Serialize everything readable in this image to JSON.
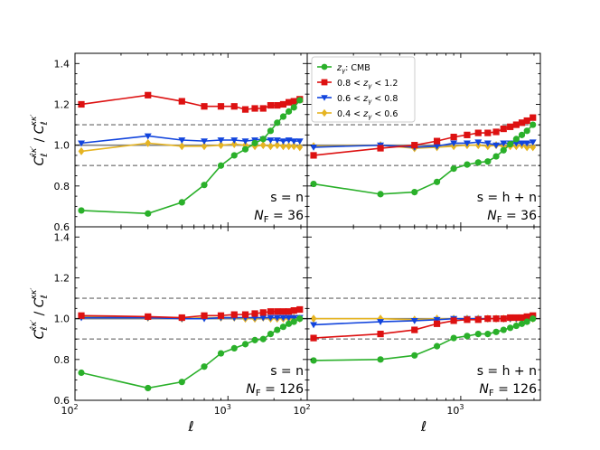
{
  "chart_data": {
    "type": "line",
    "layout": "2x2 grid, shared axes",
    "xlabel": "ℓ",
    "ylabel": "C_ℓ^{κ̂κ'} / C_ℓ^{κκ'}",
    "xscale": "log",
    "xlim": [
      100,
      3300
    ],
    "ylim": [
      0.6,
      1.45
    ],
    "xticks": [
      {
        "value": 100,
        "label": "10²"
      },
      {
        "value": 1000,
        "label": "10³"
      }
    ],
    "yticks": [
      0.6,
      0.8,
      1.0,
      1.2,
      1.4
    ],
    "ytick_labels": [
      "0.6",
      "0.8",
      "1.0",
      "1.2",
      "1.4"
    ],
    "reference_lines": {
      "solid": 1.0,
      "dashed": [
        0.9,
        1.1
      ]
    },
    "legend": {
      "location": "top-left of upper-right panel",
      "entries": [
        {
          "label": "z_γ: CMB",
          "series": "cmb"
        },
        {
          "label": "0.8 < z_γ < 1.2",
          "series": "z08"
        },
        {
          "label": "0.6 < z_γ < 0.8",
          "series": "z06"
        },
        {
          "label": "0.4 < z_γ < 0.6",
          "series": "z04"
        }
      ]
    },
    "series_styles": [
      {
        "key": "cmb",
        "color": "#2ab02a",
        "marker": "circle"
      },
      {
        "key": "z08",
        "color": "#dd1111",
        "marker": "square"
      },
      {
        "key": "z06",
        "color": "#1144dd",
        "marker": "triangle-down"
      },
      {
        "key": "z04",
        "color": "#e6b422",
        "marker": "diamond"
      }
    ],
    "x": [
      110,
      300,
      500,
      700,
      900,
      1100,
      1300,
      1500,
      1700,
      1900,
      2100,
      2300,
      2500,
      2700,
      2950
    ],
    "panels": [
      {
        "id": "s-n-36",
        "annotation": [
          "s = n",
          "N_F = 36"
        ],
        "series": [
          {
            "key": "cmb",
            "values": [
              0.68,
              0.665,
              0.72,
              0.805,
              0.9,
              0.95,
              0.98,
              1.01,
              1.03,
              1.07,
              1.11,
              1.14,
              1.165,
              1.185,
              1.22
            ]
          },
          {
            "key": "z08",
            "values": [
              1.2,
              1.245,
              1.215,
              1.19,
              1.19,
              1.19,
              1.175,
              1.18,
              1.18,
              1.195,
              1.195,
              1.2,
              1.21,
              1.215,
              1.225
            ]
          },
          {
            "key": "z06",
            "values": [
              1.01,
              1.045,
              1.025,
              1.02,
              1.025,
              1.025,
              1.02,
              1.025,
              1.03,
              1.025,
              1.025,
              1.02,
              1.025,
              1.02,
              1.02
            ]
          },
          {
            "key": "z04",
            "values": [
              0.97,
              1.01,
              0.995,
              0.995,
              1.0,
              1.005,
              1.0,
              0.995,
              1.0,
              0.995,
              1.0,
              0.995,
              0.995,
              0.995,
              0.99
            ]
          }
        ]
      },
      {
        "id": "s-hn-36",
        "annotation": [
          "s = h + n",
          "N_F = 36"
        ],
        "series": [
          {
            "key": "cmb",
            "values": [
              0.81,
              0.76,
              0.77,
              0.82,
              0.885,
              0.905,
              0.915,
              0.92,
              0.945,
              0.975,
              1.005,
              1.03,
              1.05,
              1.07,
              1.1
            ]
          },
          {
            "key": "z08",
            "values": [
              0.95,
              0.985,
              1.0,
              1.02,
              1.04,
              1.05,
              1.06,
              1.06,
              1.065,
              1.08,
              1.09,
              1.1,
              1.11,
              1.12,
              1.135
            ]
          },
          {
            "key": "z06",
            "values": [
              0.99,
              1.0,
              0.99,
              0.995,
              1.01,
              1.01,
              1.015,
              1.01,
              1.0,
              1.01,
              1.01,
              1.01,
              1.01,
              1.01,
              1.015
            ]
          },
          {
            "key": "z04",
            "values": [
              0.995,
              1.0,
              0.985,
              0.99,
              0.995,
              1.0,
              1.0,
              0.995,
              1.0,
              0.995,
              0.995,
              0.995,
              1.0,
              0.99,
              0.99
            ]
          }
        ]
      },
      {
        "id": "s-n-126",
        "annotation": [
          "s = n",
          "N_F = 126"
        ],
        "series": [
          {
            "key": "cmb",
            "values": [
              0.735,
              0.66,
              0.69,
              0.765,
              0.83,
              0.855,
              0.875,
              0.895,
              0.9,
              0.925,
              0.945,
              0.96,
              0.975,
              0.985,
              1.0
            ]
          },
          {
            "key": "z08",
            "values": [
              1.015,
              1.01,
              1.005,
              1.015,
              1.015,
              1.02,
              1.02,
              1.025,
              1.03,
              1.035,
              1.035,
              1.035,
              1.035,
              1.04,
              1.045
            ]
          },
          {
            "key": "z06",
            "values": [
              1.005,
              1.005,
              1.0,
              1.0,
              1.005,
              1.005,
              1.005,
              1.005,
              1.005,
              1.005,
              1.005,
              1.005,
              1.005,
              1.005,
              1.005
            ]
          },
          {
            "key": "z04",
            "values": [
              1.01,
              1.005,
              1.0,
              1.005,
              1.005,
              1.005,
              1.0,
              1.0,
              1.005,
              1.0,
              1.0,
              1.0,
              1.0,
              1.005,
              1.0
            ]
          }
        ]
      },
      {
        "id": "s-hn-126",
        "annotation": [
          "s = h + n",
          "N_F = 126"
        ],
        "series": [
          {
            "key": "cmb",
            "values": [
              0.795,
              0.8,
              0.82,
              0.865,
              0.905,
              0.915,
              0.925,
              0.925,
              0.935,
              0.945,
              0.955,
              0.965,
              0.975,
              0.985,
              1.0
            ]
          },
          {
            "key": "z08",
            "values": [
              0.905,
              0.925,
              0.945,
              0.975,
              0.99,
              0.995,
              0.995,
              1.0,
              1.0,
              1.0,
              1.005,
              1.005,
              1.005,
              1.01,
              1.015
            ]
          },
          {
            "key": "z06",
            "values": [
              0.97,
              0.985,
              0.99,
              0.995,
              1.0,
              1.0,
              1.0,
              1.0,
              1.0,
              1.0,
              1.0,
              1.0,
              1.0,
              1.005,
              1.005
            ]
          },
          {
            "key": "z04",
            "values": [
              1.0,
              1.0,
              0.995,
              1.0,
              1.0,
              1.0,
              1.0,
              1.0,
              1.0,
              1.0,
              1.0,
              1.0,
              1.0,
              1.0,
              1.0
            ]
          }
        ]
      }
    ]
  }
}
